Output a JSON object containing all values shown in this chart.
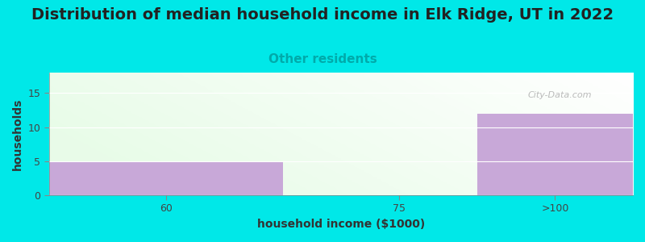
{
  "title": "Distribution of median household income in Elk Ridge, UT in 2022",
  "subtitle": "Other residents",
  "xlabel": "household income ($1000)",
  "ylabel": "households",
  "bar_color": "#c8a8d8",
  "background_color": "#00e8e8",
  "ylim": [
    0,
    18
  ],
  "yticks": [
    0,
    5,
    10,
    15
  ],
  "title_fontsize": 14,
  "subtitle_fontsize": 11,
  "title_color": "#222222",
  "subtitle_color": "#00aaaa",
  "axis_label_fontsize": 10,
  "tick_label_fontsize": 9,
  "watermark_text": "City-Data.com",
  "watermark_color": "#aaaaaa",
  "x_tick_positions": [
    1.5,
    4.5,
    6.5
  ],
  "x_tick_labels": [
    "60",
    "75",
    ">100"
  ],
  "bars": [
    {
      "x_left": 0,
      "x_right": 3.0,
      "height": 5
    },
    {
      "x_left": 3.0,
      "x_right": 5.5,
      "height": 0
    },
    {
      "x_left": 5.5,
      "x_right": 7.5,
      "height": 12
    }
  ],
  "xlim": [
    0,
    7.5
  ],
  "plot_bg_color_topleft": "#e8f5e8",
  "plot_bg_color_topright": "#f8fff8",
  "plot_bg_color_bottomleft": "#ddf0dd",
  "plot_bg_color_bottomright": "#f0fff0"
}
